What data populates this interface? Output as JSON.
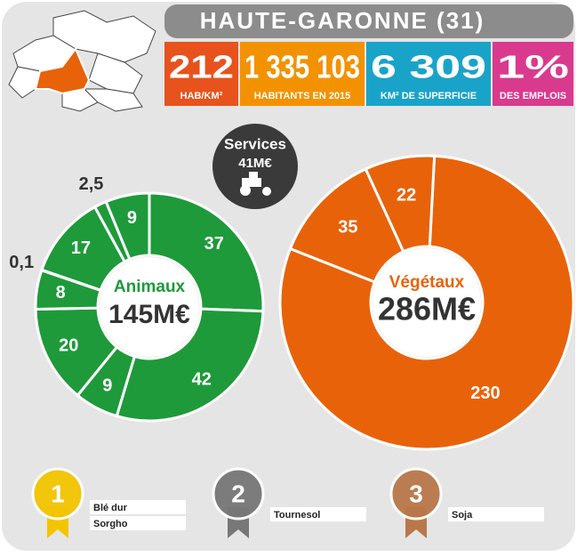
{
  "header": {
    "title": "HAUTE-GARONNE (31)"
  },
  "stats": [
    {
      "value": "212",
      "label": "HAB/KM²",
      "color": "#e8521c"
    },
    {
      "value": "1 335 103",
      "label": "HABITANTS EN 2015",
      "color": "#f39200"
    },
    {
      "value": "6 309",
      "label": "KM² DE SUPERFICIE",
      "color": "#1aa3c8"
    },
    {
      "value": "1%",
      "label": "DES EMPLOIS",
      "color": "#d93a8e"
    }
  ],
  "services": {
    "label": "Services",
    "value": "41M€"
  },
  "chart_data": [
    {
      "type": "pie",
      "title": "Animaux",
      "subtitle": "145M€",
      "color": "#1e9a3a",
      "values": [
        37,
        42,
        9,
        20,
        8,
        0.1,
        17,
        2.5,
        9
      ],
      "value_labels": [
        "37",
        "42",
        "9",
        "20",
        "8",
        "0,1",
        "17",
        "2,5",
        "9"
      ]
    },
    {
      "type": "pie",
      "title": "Végétaux",
      "subtitle": "286M€",
      "color": "#e8620a",
      "values": [
        230,
        35,
        22
      ]
    }
  ],
  "ranking": [
    {
      "rank": "1",
      "crops": [
        "Blé dur",
        "Sorgho"
      ]
    },
    {
      "rank": "2",
      "crops": [
        "Tournesol"
      ]
    },
    {
      "rank": "3",
      "crops": [
        "Soja"
      ]
    }
  ]
}
